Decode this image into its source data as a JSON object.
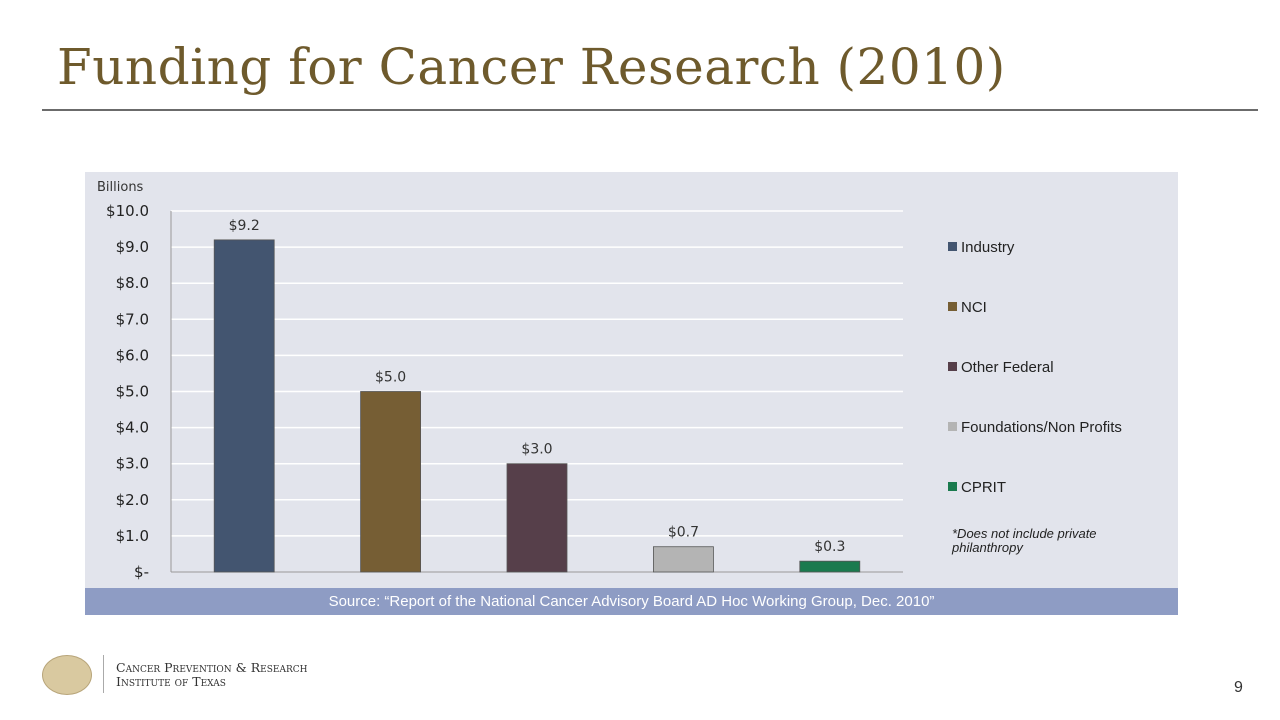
{
  "title": "Funding for Cancer Research (2010)",
  "source": "Source: “Report of the National Cancer Advisory Board AD Hoc Working Group, Dec. 2010”",
  "note": "*Does not include private philanthropy",
  "org": {
    "line1": "Cancer Prevention & Research",
    "line2": "Institute of Texas"
  },
  "page_number": "9",
  "chart_data": {
    "type": "bar",
    "ylabel": "Billions",
    "ylim": [
      0,
      10
    ],
    "yticks": [
      "$-",
      "$1.0",
      "$2.0",
      "$3.0",
      "$4.0",
      "$5.0",
      "$6.0",
      "$7.0",
      "$8.0",
      "$9.0",
      "$10.0"
    ],
    "categories": [
      "Industry",
      "NCI",
      "Other Federal",
      "Foundations/Non Profits",
      "CPRIT"
    ],
    "values": [
      9.2,
      5.0,
      3.0,
      0.7,
      0.3
    ],
    "data_labels": [
      "$9.2",
      "$5.0",
      "$3.0",
      "$0.7",
      "$0.3"
    ],
    "colors": [
      "#435570",
      "#765e34",
      "#563f4a",
      "#b4b4b4",
      "#1a7a4e"
    ],
    "legend_position": "right",
    "grid": true
  }
}
